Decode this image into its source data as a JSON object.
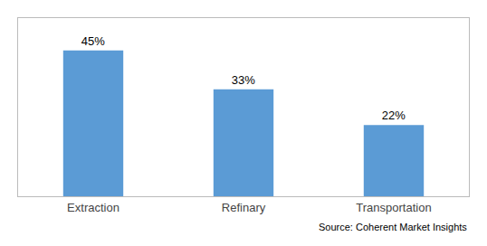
{
  "chart_data": {
    "type": "bar",
    "categories": [
      "Extraction",
      "Refinary",
      "Transportation"
    ],
    "values": [
      45,
      33,
      22
    ],
    "value_labels": [
      "45%",
      "33%",
      "22%"
    ],
    "data_labels": true,
    "color": "#5B9BD5",
    "ylim": [
      0,
      55
    ],
    "tick_labels": "x",
    "grid": false,
    "annotations": [
      "Source: Coherent Market Insights"
    ]
  }
}
